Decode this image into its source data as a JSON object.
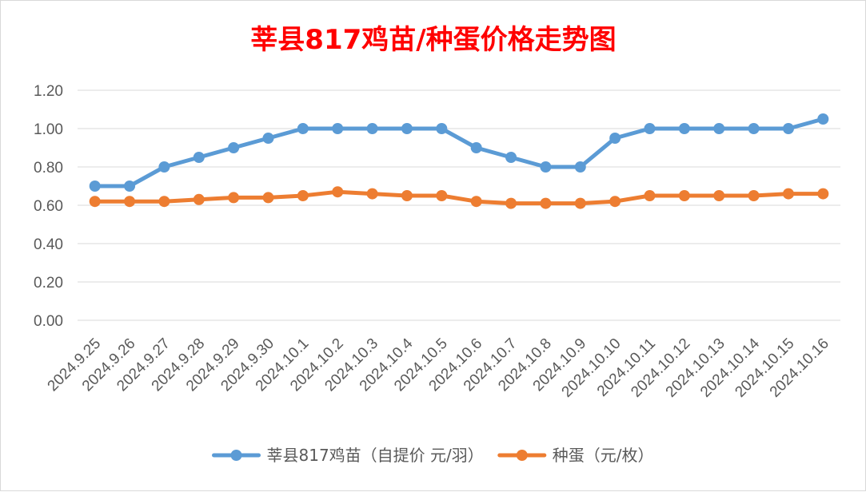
{
  "chart_data": {
    "type": "line",
    "title": "莘县817鸡苗/种蛋价格走势图",
    "xlabel": "",
    "ylabel": "",
    "ylim": [
      0,
      1.2
    ],
    "ytick_values": [
      0,
      0.2,
      0.4,
      0.6,
      0.8,
      1.0,
      1.2
    ],
    "ytick_labels": [
      "0.00",
      "0.20",
      "0.40",
      "0.60",
      "0.80",
      "1.00",
      "1.20"
    ],
    "grid": true,
    "legend_position": "bottom",
    "categories": [
      "2024.9.25",
      "2024.9.26",
      "2024.9.27",
      "2024.9.28",
      "2024.9.29",
      "2024.9.30",
      "2024.10.1",
      "2024.10.2",
      "2024.10.3",
      "2024.10.4",
      "2024.10.5",
      "2024.10.6",
      "2024.10.7",
      "2024.10.8",
      "2024.10.9",
      "2024.10.10",
      "2024.10.11",
      "2024.10.12",
      "2024.10.13",
      "2024.10.14",
      "2024.10.15",
      "2024.10.16"
    ],
    "series": [
      {
        "name": "莘县817鸡苗（自提价 元/羽）",
        "color": "#5b9bd5",
        "values": [
          0.7,
          0.7,
          0.8,
          0.85,
          0.9,
          0.95,
          1.0,
          1.0,
          1.0,
          1.0,
          1.0,
          0.9,
          0.85,
          0.8,
          0.8,
          0.95,
          1.0,
          1.0,
          1.0,
          1.0,
          1.0,
          1.05
        ]
      },
      {
        "name": "种蛋（元/枚）",
        "color": "#ed7d31",
        "values": [
          0.62,
          0.62,
          0.62,
          0.63,
          0.64,
          0.64,
          0.65,
          0.67,
          0.66,
          0.65,
          0.65,
          0.62,
          0.61,
          0.61,
          0.61,
          0.62,
          0.65,
          0.65,
          0.65,
          0.65,
          0.66,
          0.66
        ]
      }
    ]
  }
}
